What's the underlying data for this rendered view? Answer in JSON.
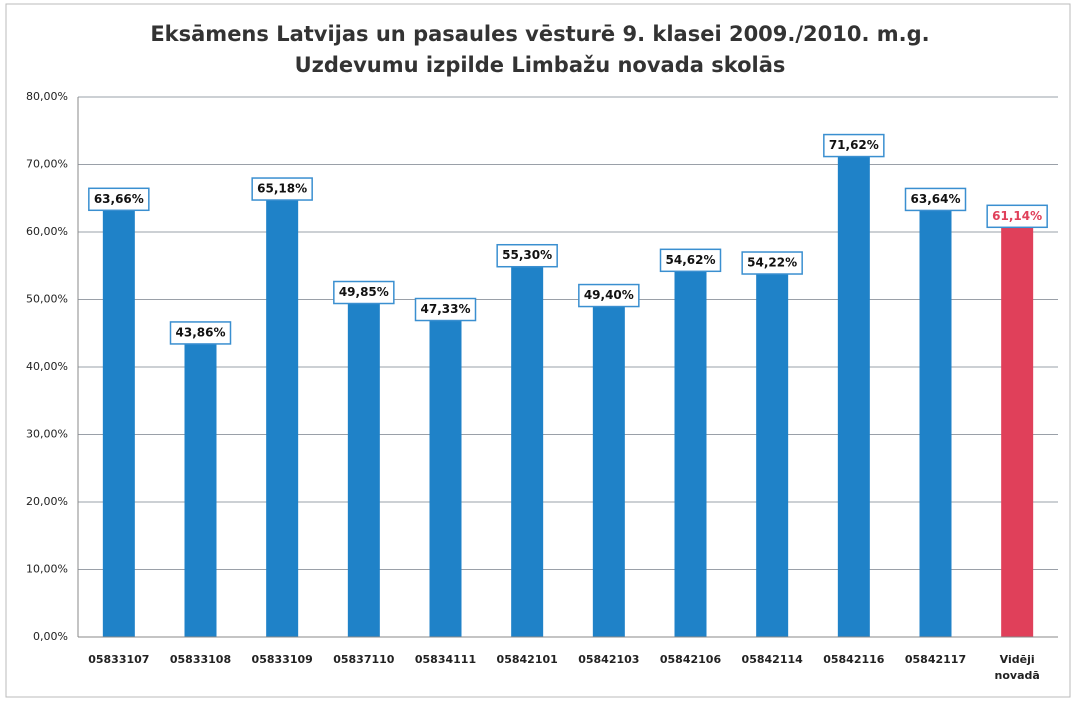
{
  "chart_data": {
    "type": "bar",
    "title": "Eksāmens Latvijas un pasaules vēsturē 9. klasei 2009./2010. m.g.",
    "subtitle": "Uzdevumu izpilde Limbažu novada skolās",
    "categories": [
      "05833107",
      "05833108",
      "05833109",
      "05837110",
      "05834111",
      "05842101",
      "05842103",
      "05842106",
      "05842114",
      "05842116",
      "05842117",
      "Vidēji novadā"
    ],
    "values": [
      63.66,
      43.86,
      65.18,
      49.85,
      47.33,
      55.3,
      49.4,
      54.62,
      54.22,
      71.62,
      63.64,
      61.14
    ],
    "value_labels": [
      "63,66%",
      "43,86%",
      "65,18%",
      "49,85%",
      "47,33%",
      "55,30%",
      "49,40%",
      "54,62%",
      "54,22%",
      "71,62%",
      "63,64%",
      "61,14%"
    ],
    "colors": [
      "#1f82c8",
      "#1f82c8",
      "#1f82c8",
      "#1f82c8",
      "#1f82c8",
      "#1f82c8",
      "#1f82c8",
      "#1f82c8",
      "#1f82c8",
      "#1f82c8",
      "#1f82c8",
      "#e0405a"
    ],
    "label_colors": [
      "#111111",
      "#111111",
      "#111111",
      "#111111",
      "#111111",
      "#111111",
      "#111111",
      "#111111",
      "#111111",
      "#111111",
      "#111111",
      "#e0405a"
    ],
    "ylim": [
      0,
      80
    ],
    "yticks": [
      {
        "value": 0,
        "label": "0,00%"
      },
      {
        "value": 10,
        "label": "10,00%"
      },
      {
        "value": 20,
        "label": "20,00%"
      },
      {
        "value": 30,
        "label": "30,00%"
      },
      {
        "value": 40,
        "label": "40,00%"
      },
      {
        "value": 50,
        "label": "50,00%"
      },
      {
        "value": 60,
        "label": "60,00%"
      },
      {
        "value": 70,
        "label": "70,00%"
      },
      {
        "value": 80,
        "label": "80,00%"
      }
    ],
    "grid": true
  }
}
